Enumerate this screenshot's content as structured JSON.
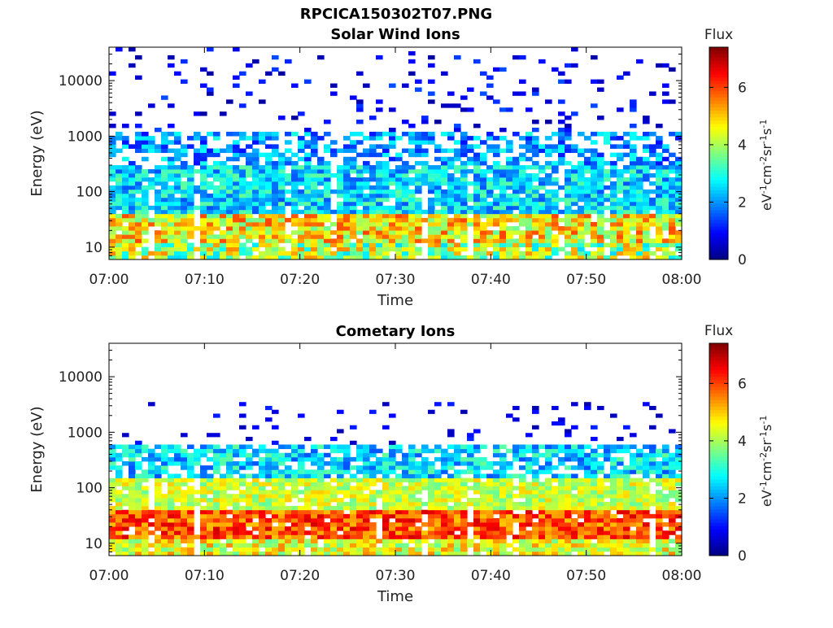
{
  "figure": {
    "title": "RPCICA150302T07.PNG"
  },
  "chart_data": [
    {
      "type": "heatmap",
      "title": "Solar Wind Ions",
      "xlabel": "Time",
      "ylabel": "Energy (eV)",
      "x_ticks": [
        "07:00",
        "07:10",
        "07:20",
        "07:30",
        "07:40",
        "07:50",
        "08:00"
      ],
      "x_range": [
        "07:00",
        "08:00"
      ],
      "y_scale": "log",
      "y_ticks": [
        10,
        100,
        1000,
        10000
      ],
      "y_tick_labels": [
        "10",
        "100",
        "1000",
        "10000"
      ],
      "ylim": [
        6,
        40000
      ],
      "colorbar": {
        "label": "Flux",
        "units": "eV-1cm-2sr-1s-1",
        "ticks": [
          0,
          2,
          4,
          6
        ],
        "range": [
          0,
          7.4
        ],
        "colormap": "jet"
      },
      "flux_by_energy": [
        {
          "energy_range": [
            6,
            12
          ],
          "level_range": [
            2.5,
            5.5
          ]
        },
        {
          "energy_range": [
            12,
            40
          ],
          "level_range": [
            3.5,
            6.0
          ]
        },
        {
          "energy_range": [
            40,
            300
          ],
          "level_range": [
            1.5,
            3.5
          ]
        },
        {
          "energy_range": [
            300,
            1200
          ],
          "level_range": [
            1.0,
            3.0
          ]
        },
        {
          "energy_range": [
            1200,
            40000
          ],
          "level_range": [
            0.2,
            1.5
          ]
        }
      ]
    },
    {
      "type": "heatmap",
      "title": "Cometary Ions",
      "xlabel": "Time",
      "ylabel": "Energy (eV)",
      "x_ticks": [
        "07:00",
        "07:10",
        "07:20",
        "07:30",
        "07:40",
        "07:50",
        "08:00"
      ],
      "x_range": [
        "07:00",
        "08:00"
      ],
      "y_scale": "log",
      "y_ticks": [
        10,
        100,
        1000,
        10000
      ],
      "y_tick_labels": [
        "10",
        "100",
        "1000",
        "10000"
      ],
      "ylim": [
        6,
        40000
      ],
      "colorbar": {
        "label": "Flux",
        "units": "eV-1cm-2sr-1s-1",
        "ticks": [
          0,
          2,
          4,
          6
        ],
        "range": [
          0,
          7.4
        ],
        "colormap": "jet"
      },
      "flux_by_energy": [
        {
          "energy_range": [
            6,
            12
          ],
          "level_range": [
            3.5,
            5.5
          ]
        },
        {
          "energy_range": [
            12,
            40
          ],
          "level_range": [
            5.0,
            6.8
          ]
        },
        {
          "energy_range": [
            40,
            150
          ],
          "level_range": [
            3.5,
            5.0
          ]
        },
        {
          "energy_range": [
            150,
            600
          ],
          "level_range": [
            1.5,
            3.5
          ]
        },
        {
          "energy_range": [
            600,
            3500
          ],
          "level_range": [
            0.3,
            1.2
          ]
        }
      ]
    }
  ]
}
